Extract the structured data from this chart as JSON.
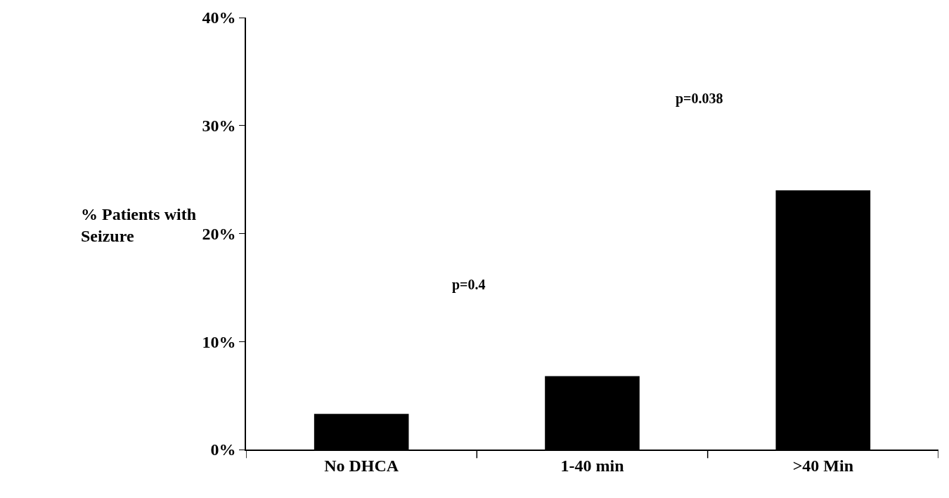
{
  "chart_data": {
    "type": "bar",
    "ylabel": "% Patients with\nSeizure",
    "categories": [
      "No DHCA",
      "1-40 min",
      ">40 Min"
    ],
    "values": [
      3.3,
      6.8,
      24.0
    ],
    "color": "#000000",
    "ylim": [
      0,
      40
    ],
    "yticks": [
      {
        "value": 0,
        "label": "0%"
      },
      {
        "value": 10,
        "label": "10%"
      },
      {
        "value": 20,
        "label": "20%"
      },
      {
        "value": 30,
        "label": "30%"
      },
      {
        "value": 40,
        "label": "40%"
      }
    ],
    "annotations": [
      "p=0.4",
      "p=0.038"
    ]
  }
}
